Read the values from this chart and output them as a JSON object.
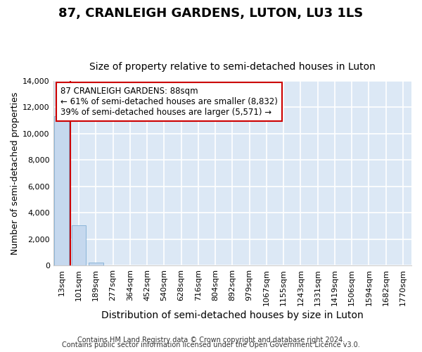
{
  "title": "87, CRANLEIGH GARDENS, LUTON, LU3 1LS",
  "subtitle": "Size of property relative to semi-detached houses in Luton",
  "xlabel": "Distribution of semi-detached houses by size in Luton",
  "ylabel": "Number of semi-detached properties",
  "bar_color": "#c5d8ee",
  "bar_edge_color": "#8ab4d8",
  "categories": [
    "13sqm",
    "101sqm",
    "189sqm",
    "277sqm",
    "364sqm",
    "452sqm",
    "540sqm",
    "628sqm",
    "716sqm",
    "804sqm",
    "892sqm",
    "979sqm",
    "1067sqm",
    "1155sqm",
    "1243sqm",
    "1331sqm",
    "1419sqm",
    "1506sqm",
    "1594sqm",
    "1682sqm",
    "1770sqm"
  ],
  "values": [
    11350,
    3050,
    200,
    0,
    0,
    0,
    0,
    0,
    0,
    0,
    0,
    0,
    0,
    0,
    0,
    0,
    0,
    0,
    0,
    0,
    0
  ],
  "ylim": [
    0,
    14000
  ],
  "vline_x": 0.5,
  "vline_color": "#cc0000",
  "annotation_text": "87 CRANLEIGH GARDENS: 88sqm\n← 61% of semi-detached houses are smaller (8,832)\n39% of semi-detached houses are larger (5,571) →",
  "annotation_box_color": "#ffffff",
  "annotation_box_edge_color": "#cc0000",
  "footer_line1": "Contains HM Land Registry data © Crown copyright and database right 2024.",
  "footer_line2": "Contains public sector information licensed under the Open Government Licence v3.0.",
  "figure_bg_color": "#ffffff",
  "plot_bg_color": "#dce8f5",
  "grid_color": "#ffffff",
  "title_fontsize": 13,
  "subtitle_fontsize": 10,
  "tick_fontsize": 8,
  "ylabel_fontsize": 9,
  "xlabel_fontsize": 10,
  "footer_fontsize": 7,
  "yticks": [
    0,
    2000,
    4000,
    6000,
    8000,
    10000,
    12000,
    14000
  ]
}
